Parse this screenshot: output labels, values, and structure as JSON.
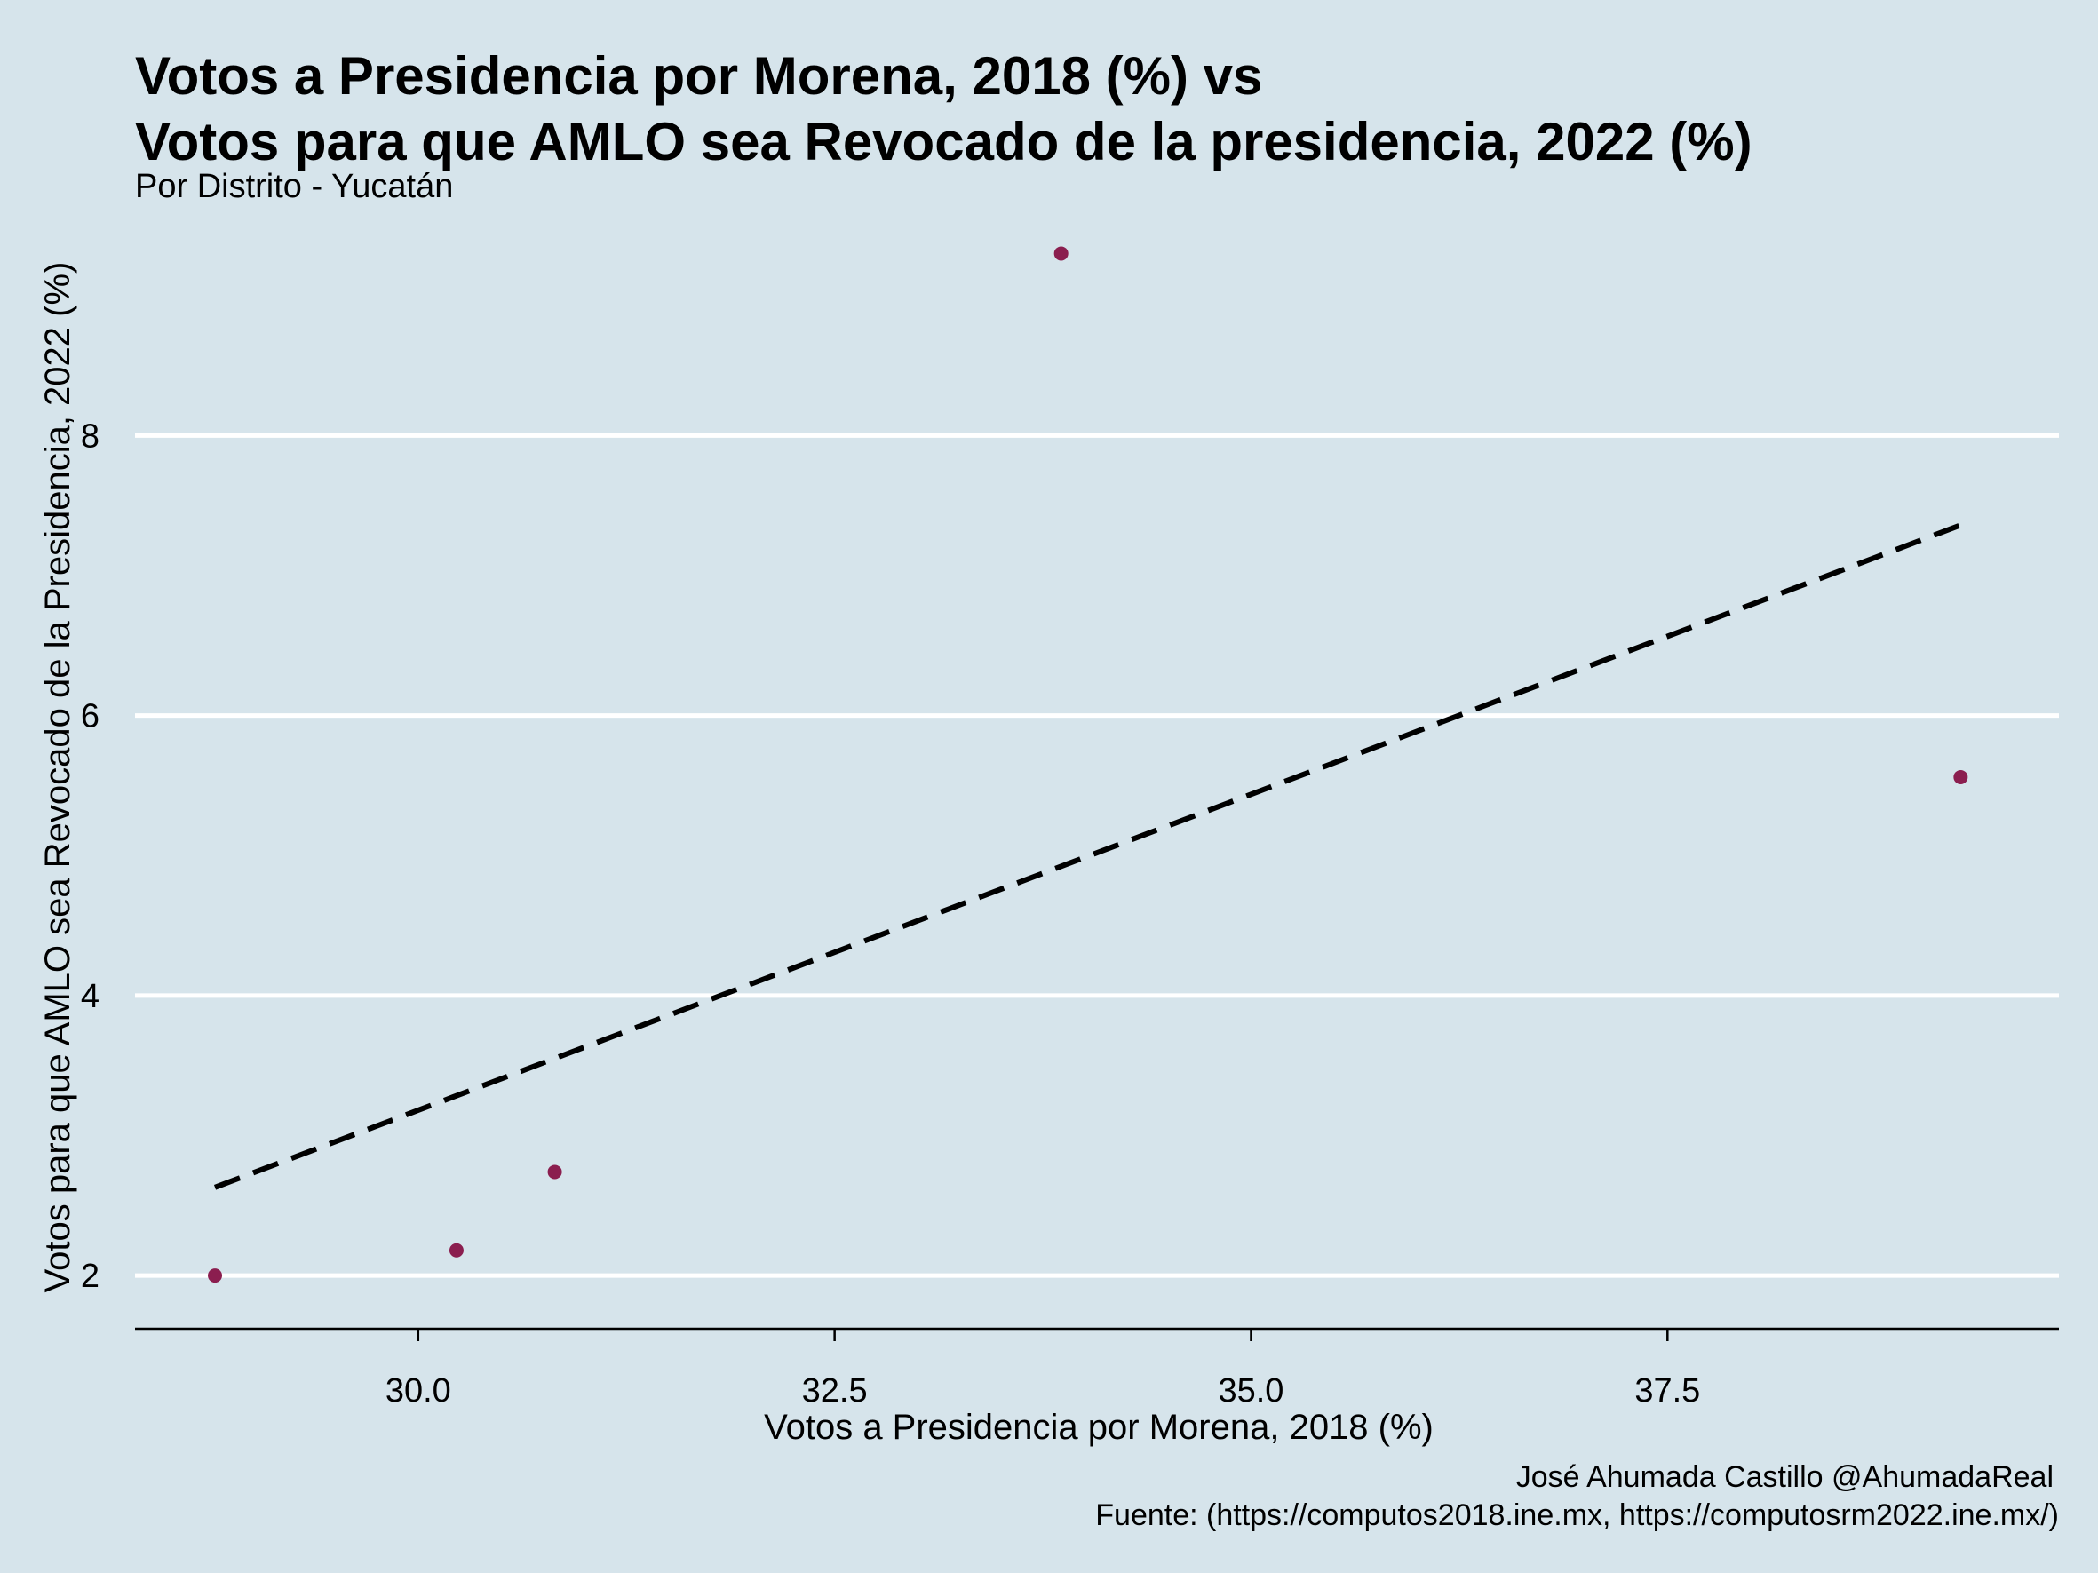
{
  "chart_data": {
    "type": "scatter",
    "title_line1": "Votos a Presidencia por Morena, 2018 (%)  vs",
    "title_line2": "Votos para que AMLO sea Revocado de la presidencia, 2022 (%)",
    "subtitle": "Por Distrito - Yucatán",
    "xlabel": "Votos a Presidencia por Morena, 2018 (%)",
    "ylabel": "Votos para que AMLO sea Revocado de la Presidencia, 2022 (%)",
    "xlim": [
      28.3,
      39.85
    ],
    "ylim": [
      1.62,
      9.62
    ],
    "x_ticks": [
      "30.0",
      "32.5",
      "35.0",
      "37.5"
    ],
    "y_ticks": [
      "2",
      "4",
      "6",
      "8"
    ],
    "points": [
      {
        "x": 28.78,
        "y": 2.0
      },
      {
        "x": 30.23,
        "y": 2.18
      },
      {
        "x": 30.82,
        "y": 2.74
      },
      {
        "x": 33.86,
        "y": 9.3
      },
      {
        "x": 39.26,
        "y": 5.56
      }
    ],
    "trend_line": {
      "x": [
        28.78,
        39.26
      ],
      "y": [
        2.63,
        7.36
      ],
      "style": "dashed"
    },
    "grid": "horizontal-major",
    "point_color": "#8b1e4f",
    "background_color": "#d6e4eb",
    "grid_color": "#ffffff"
  },
  "caption": {
    "author": "José Ahumada Castillo @AhumadaReal",
    "source": "Fuente: (https://computos2018.ine.mx, https://computosrm2022.ine.mx/)"
  }
}
